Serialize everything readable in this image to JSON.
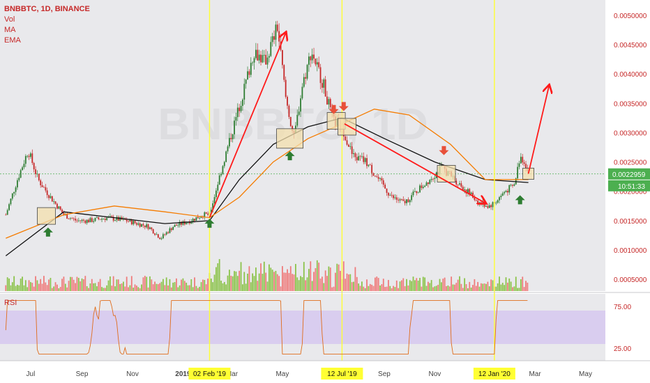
{
  "header": {
    "symbol_line": "BNBBTC, 1D, BINANCE",
    "indicators": [
      "Vol",
      "MA",
      "EMA"
    ],
    "rsi_label": "RSI",
    "watermark": "BNBBTC, 1D"
  },
  "colors": {
    "background": "#ffffff",
    "panel": "#e9e9ec",
    "up": "#2e7d32",
    "down": "#c62828",
    "ma": "#111111",
    "ema": "#f57c00",
    "annotation": "#ff1a1a",
    "vline": "#ffff33",
    "hline": "#4caf50",
    "rsi_band": "#d6c8f0",
    "rsi_line": "#e06c1a",
    "price_badge": "#4caf50",
    "box_fill": "#f3dfae",
    "arrow_up": "#2e7d32",
    "arrow_down": "#e8503a"
  },
  "price_axis": {
    "ticks": [
      "0.0050000",
      "0.0045000",
      "0.0040000",
      "0.0035000",
      "0.0030000",
      "0.0025000",
      "0.0020000",
      "0.0015000",
      "0.0010000",
      "0.0005000"
    ],
    "current_price": "0.0022959",
    "countdown": "10:51:33"
  },
  "rsi_axis": {
    "ticks": [
      "75.00",
      "25.00"
    ]
  },
  "time_axis": {
    "ticks": [
      "Jul",
      "Sep",
      "Nov",
      "2019",
      "Mar",
      "May",
      "Sep",
      "Nov",
      "Mar",
      "May"
    ],
    "highlights": [
      "02 Feb '19",
      "12 Jul '19",
      "12 Jan '20"
    ]
  },
  "chart_data": {
    "type": "candlestick",
    "symbol": "BNBBTC",
    "interval": "1D",
    "exchange": "BINANCE",
    "ylim": [
      0.0003,
      0.0052
    ],
    "price_series": [
      {
        "date": "2018-06-01",
        "price": 0.0016
      },
      {
        "date": "2018-06-15",
        "price": 0.0022
      },
      {
        "date": "2018-06-28",
        "price": 0.0027
      },
      {
        "date": "2018-07-10",
        "price": 0.0022
      },
      {
        "date": "2018-07-25",
        "price": 0.0019
      },
      {
        "date": "2018-08-10",
        "price": 0.0016
      },
      {
        "date": "2018-08-25",
        "price": 0.0015
      },
      {
        "date": "2018-09-10",
        "price": 0.0015
      },
      {
        "date": "2018-10-01",
        "price": 0.00155
      },
      {
        "date": "2018-10-25",
        "price": 0.0015
      },
      {
        "date": "2018-11-20",
        "price": 0.0014
      },
      {
        "date": "2018-12-05",
        "price": 0.0012
      },
      {
        "date": "2018-12-20",
        "price": 0.0014
      },
      {
        "date": "2019-01-10",
        "price": 0.0015
      },
      {
        "date": "2019-01-25",
        "price": 0.0016
      },
      {
        "date": "2019-02-02",
        "price": 0.0016
      },
      {
        "date": "2019-02-15",
        "price": 0.0023
      },
      {
        "date": "2019-03-01",
        "price": 0.003
      },
      {
        "date": "2019-03-15",
        "price": 0.0037
      },
      {
        "date": "2019-03-28",
        "price": 0.0044
      },
      {
        "date": "2019-04-10",
        "price": 0.0042
      },
      {
        "date": "2019-04-25",
        "price": 0.0048
      },
      {
        "date": "2019-05-05",
        "price": 0.0036
      },
      {
        "date": "2019-05-15",
        "price": 0.0029
      },
      {
        "date": "2019-05-25",
        "price": 0.0038
      },
      {
        "date": "2019-06-05",
        "price": 0.0044
      },
      {
        "date": "2019-06-20",
        "price": 0.0038
      },
      {
        "date": "2019-07-01",
        "price": 0.0032
      },
      {
        "date": "2019-07-12",
        "price": 0.0031
      },
      {
        "date": "2019-07-25",
        "price": 0.0026
      },
      {
        "date": "2019-08-10",
        "price": 0.0025
      },
      {
        "date": "2019-08-25",
        "price": 0.0022
      },
      {
        "date": "2019-09-10",
        "price": 0.0019
      },
      {
        "date": "2019-09-25",
        "price": 0.0018
      },
      {
        "date": "2019-10-10",
        "price": 0.002
      },
      {
        "date": "2019-10-25",
        "price": 0.0022
      },
      {
        "date": "2019-11-10",
        "price": 0.0024
      },
      {
        "date": "2019-11-25",
        "price": 0.0022
      },
      {
        "date": "2019-12-10",
        "price": 0.002
      },
      {
        "date": "2019-12-25",
        "price": 0.0018
      },
      {
        "date": "2020-01-05",
        "price": 0.00175
      },
      {
        "date": "2020-01-12",
        "price": 0.0018
      },
      {
        "date": "2020-01-25",
        "price": 0.002
      },
      {
        "date": "2020-02-05",
        "price": 0.0021
      },
      {
        "date": "2020-02-12",
        "price": 0.0026
      },
      {
        "date": "2020-02-18",
        "price": 0.0025
      },
      {
        "date": "2020-02-22",
        "price": 0.0023
      }
    ],
    "ma_series": [
      {
        "date": "2018-06-01",
        "price": 0.0009
      },
      {
        "date": "2018-08-10",
        "price": 0.00165
      },
      {
        "date": "2018-10-10",
        "price": 0.00155
      },
      {
        "date": "2018-12-10",
        "price": 0.00145
      },
      {
        "date": "2019-02-02",
        "price": 0.0015
      },
      {
        "date": "2019-03-10",
        "price": 0.0022
      },
      {
        "date": "2019-04-20",
        "price": 0.0028
      },
      {
        "date": "2019-06-01",
        "price": 0.0031
      },
      {
        "date": "2019-07-12",
        "price": 0.00325
      },
      {
        "date": "2019-09-01",
        "price": 0.0029
      },
      {
        "date": "2019-11-01",
        "price": 0.0025
      },
      {
        "date": "2020-01-01",
        "price": 0.0022
      },
      {
        "date": "2020-02-22",
        "price": 0.00215
      }
    ],
    "ema_series": [
      {
        "date": "2018-06-01",
        "price": 0.0012
      },
      {
        "date": "2018-08-10",
        "price": 0.0016
      },
      {
        "date": "2018-10-10",
        "price": 0.00175
      },
      {
        "date": "2018-12-10",
        "price": 0.00165
      },
      {
        "date": "2019-02-02",
        "price": 0.00155
      },
      {
        "date": "2019-03-10",
        "price": 0.0019
      },
      {
        "date": "2019-04-20",
        "price": 0.0025
      },
      {
        "date": "2019-06-01",
        "price": 0.0029
      },
      {
        "date": "2019-07-12",
        "price": 0.00315
      },
      {
        "date": "2019-08-20",
        "price": 0.0034
      },
      {
        "date": "2019-10-01",
        "price": 0.0033
      },
      {
        "date": "2019-11-20",
        "price": 0.0028
      },
      {
        "date": "2020-01-01",
        "price": 0.0022
      },
      {
        "date": "2020-02-22",
        "price": 0.0022
      }
    ],
    "highlight_dates": [
      "2019-02-02",
      "2019-07-12",
      "2020-01-12"
    ],
    "trend_arrows": [
      {
        "from": {
          "date": "2019-02-02",
          "price": 0.00155
        },
        "to": {
          "date": "2019-05-05",
          "price": 0.0047
        }
      },
      {
        "from": {
          "date": "2019-07-15",
          "price": 0.00315
        },
        "to": {
          "date": "2020-01-01",
          "price": 0.0018
        }
      },
      {
        "from": {
          "date": "2020-02-22",
          "price": 0.0023
        },
        "to": {
          "date": "2020-03-18",
          "price": 0.0038
        }
      }
    ],
    "boxes": [
      {
        "date": "2018-07-20",
        "price": 0.00158,
        "signal": "buy"
      },
      {
        "date": "2019-05-10",
        "price": 0.0029,
        "signal": "buy"
      },
      {
        "date": "2019-07-05",
        "price": 0.0032,
        "signal": "sell"
      },
      {
        "date": "2019-07-18",
        "price": 0.0031,
        "signal": "sell"
      },
      {
        "date": "2019-11-15",
        "price": 0.0023,
        "signal": "sell"
      },
      {
        "date": "2020-02-22",
        "price": 0.0023,
        "signal": "none"
      }
    ],
    "signal_arrows": [
      {
        "date": "2018-07-22",
        "price": 0.0013,
        "dir": "up"
      },
      {
        "date": "2019-02-02",
        "price": 0.00145,
        "dir": "up"
      },
      {
        "date": "2019-05-10",
        "price": 0.0026,
        "dir": "up"
      },
      {
        "date": "2019-07-02",
        "price": 0.0034,
        "dir": "down"
      },
      {
        "date": "2019-07-14",
        "price": 0.00345,
        "dir": "down"
      },
      {
        "date": "2019-11-12",
        "price": 0.0027,
        "dir": "down"
      },
      {
        "date": "2020-02-12",
        "price": 0.00185,
        "dir": "up"
      }
    ],
    "rsi": {
      "ylim": [
        10,
        90
      ],
      "band": [
        30,
        70
      ]
    }
  }
}
